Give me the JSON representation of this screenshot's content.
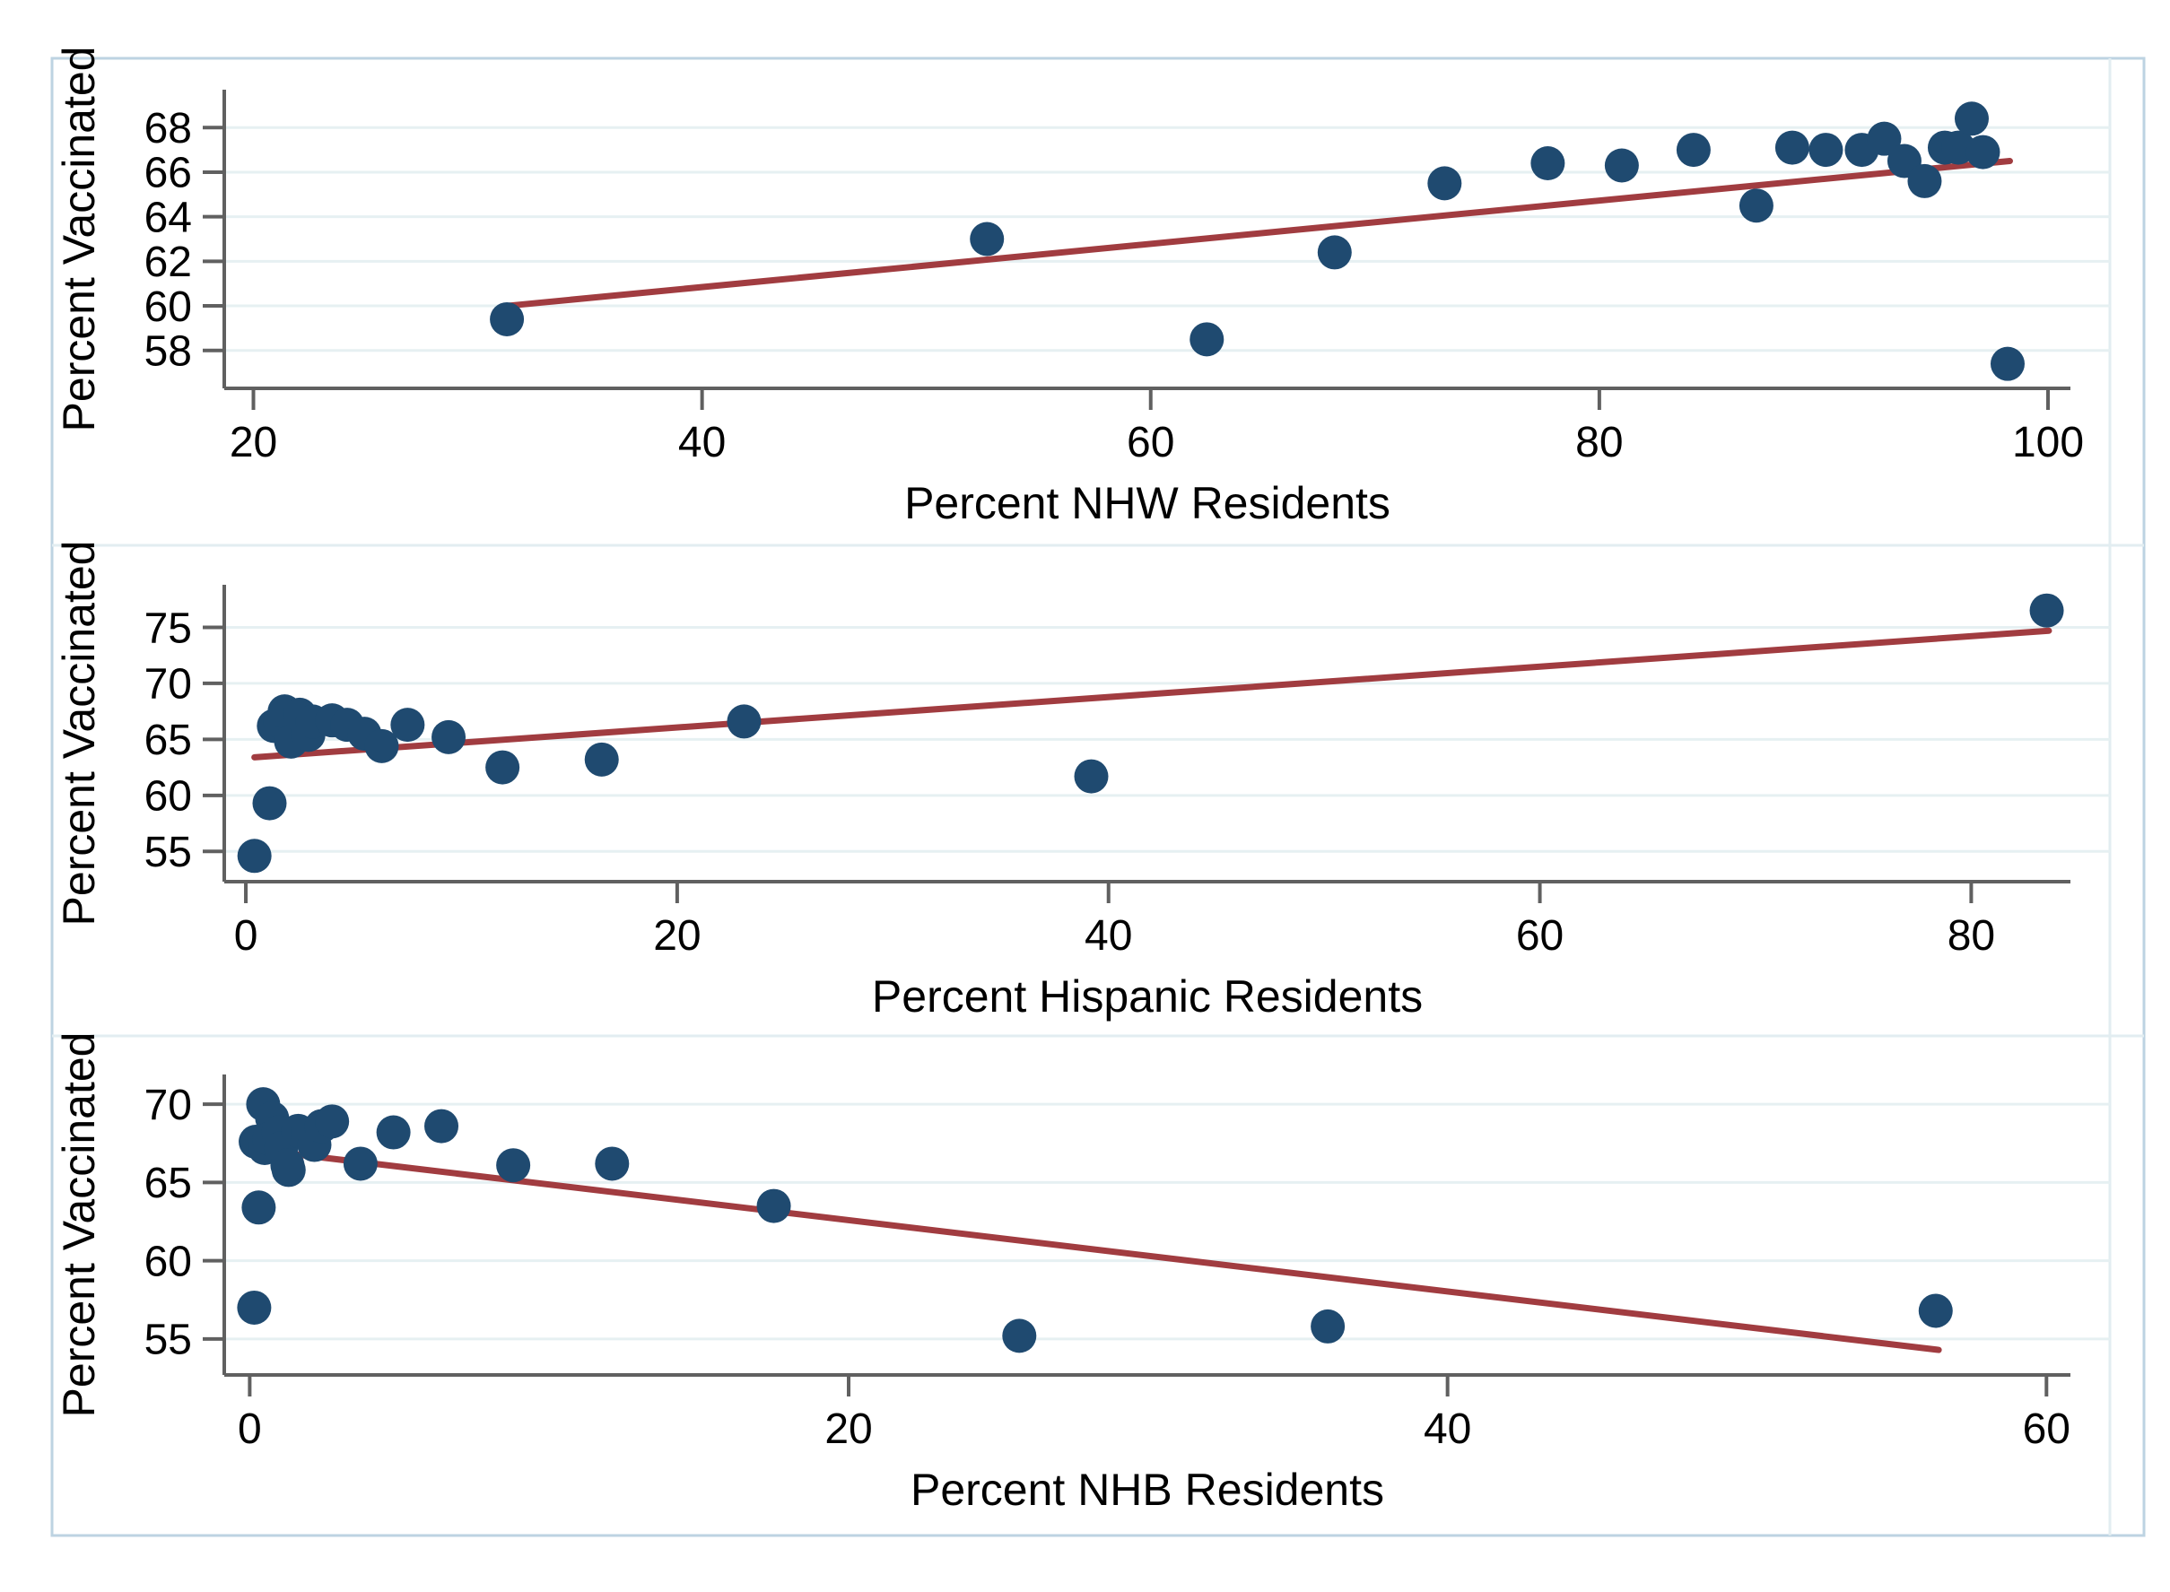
{
  "figure": {
    "background": "#ffffff",
    "outer_border_color": "#bdd3e2",
    "panel_divider_color": "#e2edf1",
    "axis_color": "#606060",
    "grid_color": "#e6f0f2",
    "dot_color": "#1f4a70",
    "trend_color": "#a13c40",
    "text_color": "#000000"
  },
  "chart_data": [
    {
      "type": "scatter",
      "title": "",
      "xlabel": "Percent NHW Residents",
      "ylabel": "Percent Vaccinated",
      "xlim": [
        18.7,
        101
      ],
      "ylim": [
        56.3,
        69.7
      ],
      "xticks": [
        20,
        40,
        60,
        80,
        100
      ],
      "yticks": [
        58,
        60,
        62,
        64,
        66,
        68
      ],
      "grid": "horizontal",
      "legend": "none",
      "points": [
        [
          31.3,
          59.4
        ],
        [
          52.7,
          63.0
        ],
        [
          62.5,
          58.5
        ],
        [
          68.2,
          62.4
        ],
        [
          73.1,
          65.5
        ],
        [
          77.7,
          66.4
        ],
        [
          81.0,
          66.3
        ],
        [
          84.2,
          67.0
        ],
        [
          87.0,
          64.5
        ],
        [
          88.6,
          67.1
        ],
        [
          90.1,
          67.0
        ],
        [
          91.7,
          67.0
        ],
        [
          92.7,
          67.5
        ],
        [
          93.6,
          66.5
        ],
        [
          94.5,
          65.6
        ],
        [
          95.4,
          67.1
        ],
        [
          96.0,
          67.1
        ],
        [
          96.6,
          68.4
        ],
        [
          97.1,
          66.9
        ],
        [
          98.2,
          57.4
        ]
      ],
      "trend": {
        "x": [
          31.3,
          98.3
        ],
        "y": [
          60.0,
          66.5
        ]
      }
    },
    {
      "type": "scatter",
      "title": "",
      "xlabel": "Percent Hispanic Residents",
      "ylabel": "Percent Vaccinated",
      "xlim": [
        -1,
        84.6
      ],
      "ylim": [
        52.3,
        78.8
      ],
      "xticks": [
        0,
        20,
        40,
        60,
        80
      ],
      "yticks": [
        55,
        60,
        65,
        70,
        75
      ],
      "grid": "horizontal",
      "legend": "none",
      "points": [
        [
          0.4,
          54.6
        ],
        [
          1.1,
          59.3
        ],
        [
          1.3,
          66.2
        ],
        [
          1.6,
          66.6
        ],
        [
          1.8,
          67.5
        ],
        [
          2.1,
          64.8
        ],
        [
          2.5,
          67.2
        ],
        [
          2.9,
          65.4
        ],
        [
          3.1,
          66.6
        ],
        [
          4.0,
          66.7
        ],
        [
          4.7,
          66.3
        ],
        [
          5.5,
          65.5
        ],
        [
          6.3,
          64.4
        ],
        [
          7.5,
          66.3
        ],
        [
          9.4,
          65.2
        ],
        [
          11.9,
          62.5
        ],
        [
          16.5,
          63.2
        ],
        [
          23.1,
          66.6
        ],
        [
          39.2,
          61.7
        ],
        [
          83.5,
          76.5
        ]
      ],
      "trend": {
        "x": [
          0.4,
          83.6
        ],
        "y": [
          63.4,
          74.7
        ]
      }
    },
    {
      "type": "scatter",
      "title": "",
      "xlabel": "Percent NHB Residents",
      "ylabel": "Percent Vaccinated",
      "xlim": [
        -0.85,
        60.8
      ],
      "ylim": [
        52.7,
        71.9
      ],
      "xticks": [
        0,
        20,
        40,
        60
      ],
      "yticks": [
        55,
        60,
        65,
        70
      ],
      "grid": "horizontal",
      "legend": "none",
      "points": [
        [
          0.15,
          57.0
        ],
        [
          0.3,
          63.4
        ],
        [
          0.2,
          67.6
        ],
        [
          0.45,
          70.0
        ],
        [
          0.5,
          67.2
        ],
        [
          0.75,
          69.1
        ],
        [
          0.66,
          67.8
        ],
        [
          0.96,
          68.2
        ],
        [
          1.05,
          67.2
        ],
        [
          1.3,
          65.8
        ],
        [
          1.26,
          66.1
        ],
        [
          1.62,
          68.3
        ],
        [
          1.95,
          68.1
        ],
        [
          2.16,
          67.4
        ],
        [
          2.4,
          68.6
        ],
        [
          2.75,
          68.9
        ],
        [
          3.7,
          66.2
        ],
        [
          4.8,
          68.2
        ],
        [
          6.4,
          68.6
        ],
        [
          8.8,
          66.1
        ],
        [
          12.1,
          66.2
        ],
        [
          17.5,
          63.5
        ],
        [
          25.7,
          55.2
        ],
        [
          36.0,
          55.8
        ],
        [
          56.3,
          56.8
        ]
      ],
      "trend": {
        "x": [
          0.2,
          56.4
        ],
        "y": [
          67.1,
          54.3
        ]
      }
    }
  ]
}
